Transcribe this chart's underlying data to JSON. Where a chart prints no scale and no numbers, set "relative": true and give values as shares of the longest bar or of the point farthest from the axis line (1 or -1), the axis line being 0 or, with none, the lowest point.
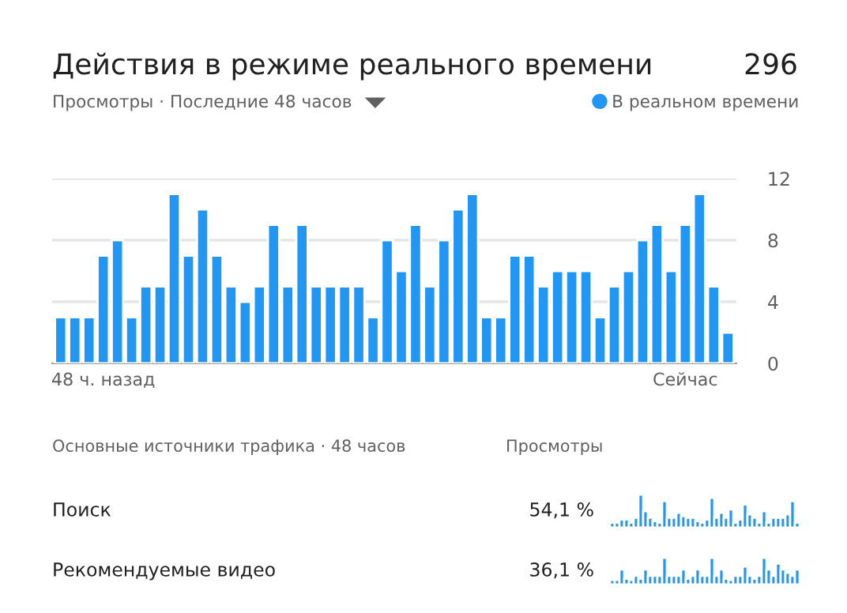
{
  "chart_data": [
    {
      "type": "bar",
      "title": "Действия в режиме реального времени",
      "subtitle": "Просмотры · Последние 48 часов",
      "annotations": [
        "296"
      ],
      "categories": [
        null,
        null,
        null,
        "48 ч. назад",
        null,
        null,
        null,
        null,
        null,
        null,
        null,
        null,
        null,
        null,
        null,
        null,
        null,
        null,
        null,
        null,
        null,
        null,
        null,
        null,
        null,
        null,
        null,
        null,
        null,
        null,
        null,
        null,
        null,
        null,
        null,
        null,
        null,
        null,
        null,
        null,
        null,
        null,
        null,
        null,
        "Сейчас",
        null,
        null,
        null
      ],
      "series": [
        {
          "name": "В реальном времени",
          "color": "#2196f3",
          "values": [
            3,
            3,
            3,
            7,
            8,
            3,
            5,
            5,
            11,
            7,
            10,
            7,
            5,
            4,
            5,
            9,
            5,
            9,
            5,
            5,
            5,
            5,
            3,
            8,
            6,
            9,
            5,
            8,
            10,
            11,
            3,
            3,
            7,
            7,
            5,
            6,
            6,
            6,
            3,
            5,
            6,
            8,
            9,
            6,
            9,
            11,
            5,
            2
          ]
        }
      ],
      "ylim": [
        0,
        12
      ],
      "yticks": [
        0,
        4,
        8,
        12
      ],
      "grid": "y",
      "legend": "top right"
    },
    {
      "type": "bar",
      "relative": true,
      "annotations": [
        "Основные источники трафика · 48 часов",
        "Просмотры",
        "Поиск",
        "54,1 %"
      ],
      "categories": [
        null,
        null,
        null,
        null,
        null,
        null,
        null,
        null,
        null,
        null,
        null,
        null,
        null,
        null,
        null,
        null,
        null,
        null,
        null,
        null,
        null,
        null,
        null,
        null,
        null,
        null,
        null,
        null,
        null,
        null,
        null,
        null,
        null,
        null,
        null,
        null,
        null,
        null,
        null,
        null
      ],
      "series": [
        {
          "color": "#2196f3",
          "values": [
            0.15,
            0.15,
            0.25,
            0.25,
            0.15,
            0.3,
            1.0,
            0.5,
            0.3,
            0.2,
            0.15,
            0.8,
            0.3,
            0.3,
            0.45,
            0.35,
            0.3,
            0.3,
            0.2,
            0.15,
            0.25,
            0.9,
            0.3,
            0.45,
            0.3,
            0.55,
            0.15,
            0.25,
            0.7,
            0.4,
            0.3,
            0.15,
            0.5,
            0.15,
            0.3,
            0.3,
            0.3,
            0.4,
            0.8,
            0.15
          ]
        }
      ]
    },
    {
      "type": "bar",
      "relative": true,
      "annotations": [
        "Рекомендуемые видео",
        "36,1 %"
      ],
      "categories": [
        null,
        null,
        null,
        null,
        null,
        null,
        null,
        null,
        null,
        null,
        null,
        null,
        null,
        null,
        null,
        null,
        null,
        null,
        null,
        null,
        null,
        null,
        null,
        null,
        null,
        null,
        null,
        null,
        null,
        null,
        null,
        null,
        null,
        null,
        null,
        null,
        null,
        null,
        null,
        null
      ],
      "series": [
        {
          "color": "#2196f3",
          "values": [
            0.17,
            0.17,
            0.56,
            0.22,
            0.17,
            0.33,
            0.22,
            0.56,
            0.33,
            0.33,
            0.33,
            1,
            0.33,
            0.33,
            0.33,
            0.56,
            0.22,
            0.33,
            0.56,
            0.33,
            0.33,
            1,
            0.33,
            0.56,
            0.22,
            0.17,
            0.33,
            0.33,
            0.67,
            0.33,
            0.22,
            0.33,
            1,
            0.56,
            0.33,
            0.78,
            0.56,
            0.44,
            0.33,
            0.56
          ]
        }
      ]
    }
  ]
}
